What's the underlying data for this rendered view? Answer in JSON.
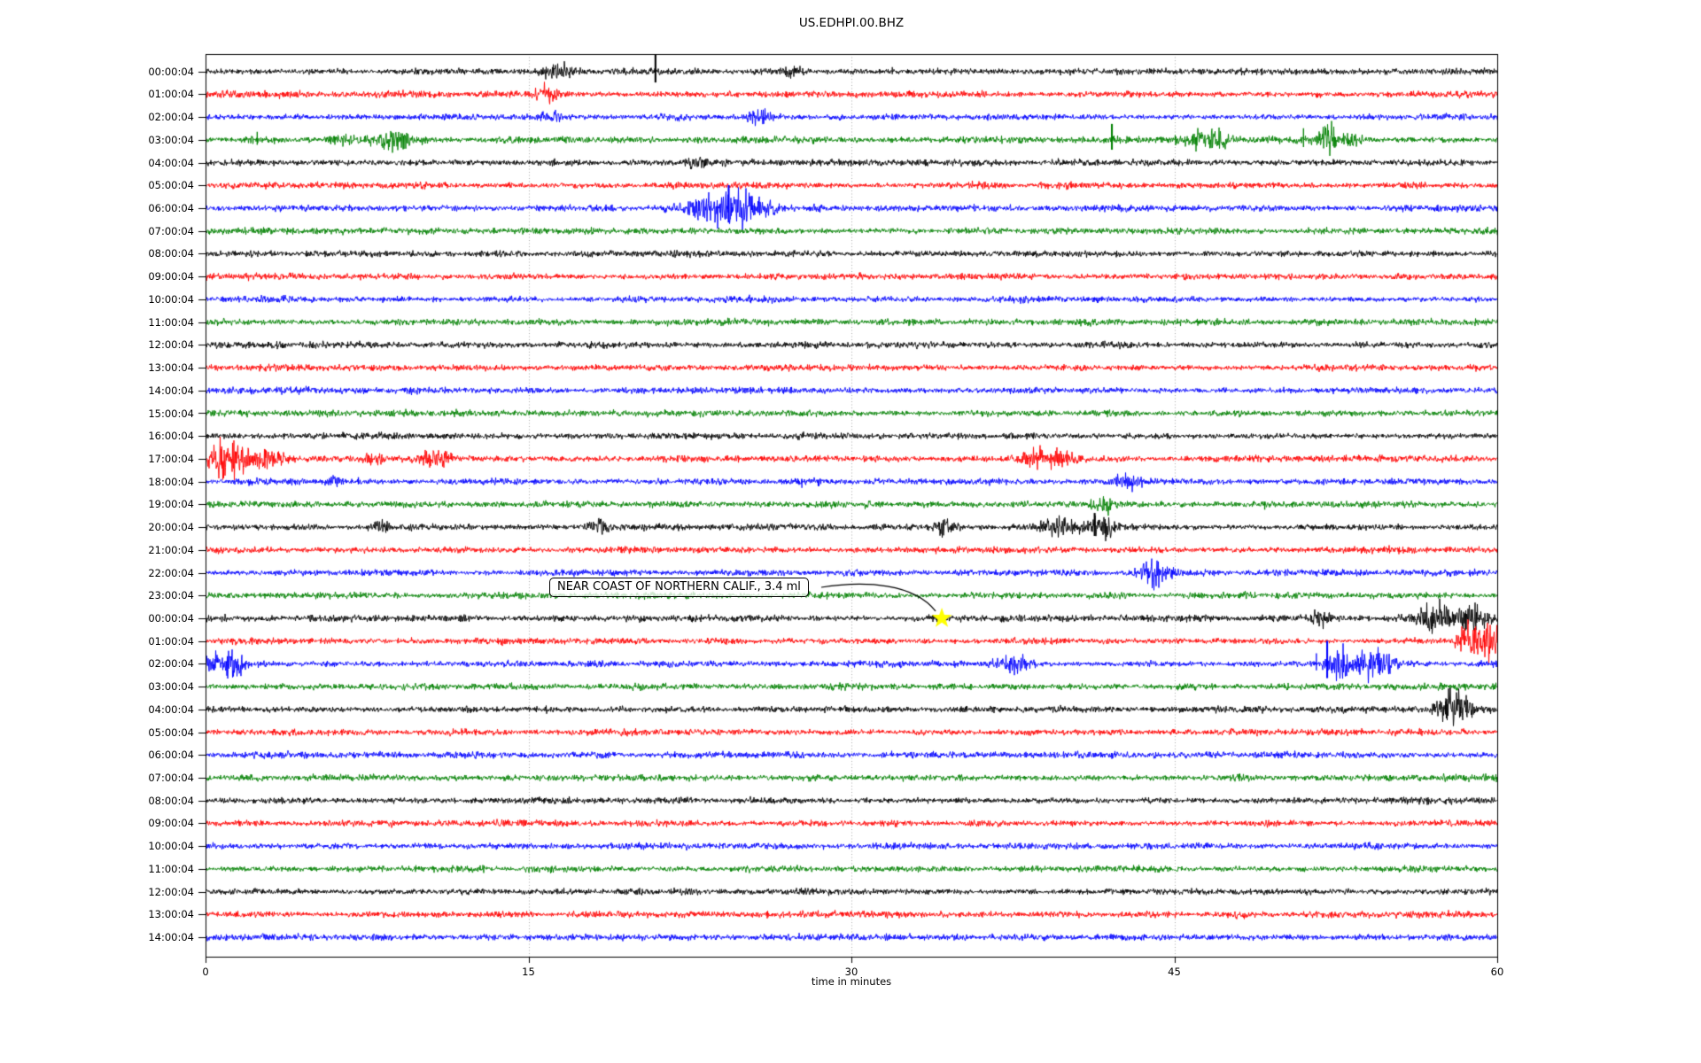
{
  "title": "US.EDHPI.00.BHZ",
  "xaxis": {
    "label": "time in minutes",
    "tick_labels": [
      "0",
      "15",
      "30",
      "45",
      "60"
    ],
    "tick_minutes": [
      0,
      15,
      30,
      45,
      60
    ],
    "grid_minutes": [
      15,
      30,
      45
    ],
    "range": [
      0,
      60
    ]
  },
  "annotation": {
    "text": "NEAR COAST OF NORTHERN CALIF., 3.4 ml",
    "target_row": 24,
    "target_row_label": "00:00:04",
    "target_minute": 34.2,
    "marker": "star",
    "marker_color": "#ffff00"
  },
  "palette": {
    "black": "#000000",
    "red": "#ff0000",
    "blue": "#0000ff",
    "green": "#008000",
    "grid": "#aaaaaa",
    "frame": "#000000",
    "background": "#ffffff"
  },
  "chart_data": {
    "type": "line",
    "subtype": "helicorder-seismogram",
    "title": "US.EDHPI.00.BHZ",
    "xlabel": "time in minutes",
    "minutes_per_row": 60,
    "row_interval": "1 hour",
    "color_cycle": [
      "black",
      "red",
      "blue",
      "green"
    ],
    "rows": [
      {
        "label": "00:00:04",
        "color": "black",
        "events": [
          {
            "kind": "burst",
            "t": 16.4,
            "amp": 2.2,
            "w": 0.5
          },
          {
            "kind": "spike",
            "t": 20.9,
            "amp": 20
          },
          {
            "kind": "burst",
            "t": 27.3,
            "amp": 1.6,
            "w": 0.3
          },
          {
            "kind": "spike",
            "t": 31.9,
            "amp": 5
          }
        ]
      },
      {
        "label": "01:00:04",
        "color": "red",
        "events": [
          {
            "kind": "burst",
            "t": 15.9,
            "amp": 2.6,
            "w": 0.4
          }
        ]
      },
      {
        "label": "02:00:04",
        "color": "blue",
        "events": [
          {
            "kind": "burst",
            "t": 16.0,
            "amp": 1.7,
            "w": 0.3
          },
          {
            "kind": "burst",
            "t": 25.7,
            "amp": 2.0,
            "w": 0.4
          }
        ]
      },
      {
        "label": "03:00:04",
        "color": "green",
        "events": [
          {
            "kind": "spike",
            "t": 2.4,
            "amp": 9
          },
          {
            "kind": "spike",
            "t": 3.2,
            "amp": -5
          },
          {
            "kind": "spike",
            "t": 5.8,
            "amp": 4
          },
          {
            "kind": "burst",
            "t": 6.4,
            "amp": 2.0,
            "w": 0.4
          },
          {
            "kind": "burst",
            "t": 8.8,
            "amp": 2.8,
            "w": 0.7
          },
          {
            "kind": "spike",
            "t": 15.3,
            "amp": -4
          },
          {
            "kind": "spike",
            "t": 35.2,
            "amp": 4
          },
          {
            "kind": "spike",
            "t": 42.1,
            "amp": 18
          },
          {
            "kind": "burst",
            "t": 46.6,
            "amp": 3.2,
            "w": 0.7
          },
          {
            "kind": "spike",
            "t": 51.0,
            "amp": 13
          },
          {
            "kind": "burst",
            "t": 52.1,
            "amp": 4.5,
            "w": 0.35
          },
          {
            "kind": "burst",
            "t": 53.3,
            "amp": 2.0,
            "w": 0.3
          }
        ]
      },
      {
        "label": "04:00:04",
        "color": "black",
        "events": [
          {
            "kind": "burst",
            "t": 22.8,
            "amp": 1.4,
            "w": 0.3
          },
          {
            "kind": "spike",
            "t": 28.2,
            "amp": 4
          }
        ]
      },
      {
        "label": "05:00:04",
        "color": "red",
        "events": []
      },
      {
        "label": "06:00:04",
        "color": "blue",
        "events": [
          {
            "kind": "burst",
            "t": 23.4,
            "amp": 4.0,
            "w": 0.9
          },
          {
            "kind": "spike",
            "t": 24.3,
            "amp": 26
          },
          {
            "kind": "burst",
            "t": 24.9,
            "amp": 5.5,
            "w": 0.5
          },
          {
            "kind": "burst",
            "t": 25.9,
            "amp": 2.0,
            "w": 0.5
          }
        ]
      },
      {
        "label": "07:00:04",
        "color": "green",
        "events": []
      },
      {
        "label": "08:00:04",
        "color": "black",
        "events": []
      },
      {
        "label": "09:00:04",
        "color": "red",
        "events": []
      },
      {
        "label": "10:00:04",
        "color": "blue",
        "events": []
      },
      {
        "label": "11:00:04",
        "color": "green",
        "events": []
      },
      {
        "label": "12:00:04",
        "color": "black",
        "events": []
      },
      {
        "label": "13:00:04",
        "color": "red",
        "events": []
      },
      {
        "label": "14:00:04",
        "color": "blue",
        "events": []
      },
      {
        "label": "15:00:04",
        "color": "green",
        "events": []
      },
      {
        "label": "16:00:04",
        "color": "black",
        "events": []
      },
      {
        "label": "17:00:04",
        "color": "red",
        "events": [
          {
            "kind": "spike",
            "t": 0.75,
            "amp": 14
          },
          {
            "kind": "burst",
            "t": 0.9,
            "amp": 6,
            "w": 0.45
          },
          {
            "kind": "burst",
            "t": 1.9,
            "amp": 3.5,
            "w": 0.5
          },
          {
            "kind": "burst",
            "t": 3.0,
            "amp": 2.5,
            "w": 0.4
          },
          {
            "kind": "burst",
            "t": 7.8,
            "amp": 1.6,
            "w": 0.3
          },
          {
            "kind": "burst",
            "t": 10.7,
            "amp": 2.4,
            "w": 0.5
          },
          {
            "kind": "burst",
            "t": 38.6,
            "amp": 2.6,
            "w": 0.5
          },
          {
            "kind": "burst",
            "t": 39.8,
            "amp": 2.0,
            "w": 0.4
          },
          {
            "kind": "spike",
            "t": 48.5,
            "amp": 4
          }
        ]
      },
      {
        "label": "18:00:04",
        "color": "blue",
        "events": [
          {
            "kind": "burst",
            "t": 5.9,
            "amp": 1.5,
            "w": 0.3
          },
          {
            "kind": "spike",
            "t": 7.1,
            "amp": 5
          },
          {
            "kind": "spike",
            "t": 27.7,
            "amp": -7
          },
          {
            "kind": "spike",
            "t": 34.5,
            "amp": 3
          },
          {
            "kind": "burst",
            "t": 42.9,
            "amp": 2.4,
            "w": 0.4
          }
        ]
      },
      {
        "label": "19:00:04",
        "color": "green",
        "events": [
          {
            "kind": "burst",
            "t": 41.8,
            "amp": 2.0,
            "w": 0.4
          },
          {
            "kind": "spike",
            "t": 49.2,
            "amp": -6
          }
        ]
      },
      {
        "label": "20:00:04",
        "color": "black",
        "events": [
          {
            "kind": "burst",
            "t": 8.1,
            "amp": 1.8,
            "w": 0.3
          },
          {
            "kind": "burst",
            "t": 18.3,
            "amp": 2.0,
            "w": 0.4
          },
          {
            "kind": "burst",
            "t": 34.4,
            "amp": 2.3,
            "w": 0.4
          },
          {
            "kind": "burst",
            "t": 39.6,
            "amp": 3.2,
            "w": 0.5
          },
          {
            "kind": "spike",
            "t": 41.3,
            "amp": 16
          },
          {
            "kind": "burst",
            "t": 41.6,
            "amp": 3.5,
            "w": 0.6
          },
          {
            "kind": "spike",
            "t": 55.4,
            "amp": 4
          }
        ]
      },
      {
        "label": "21:00:04",
        "color": "red",
        "events": []
      },
      {
        "label": "22:00:04",
        "color": "blue",
        "events": [
          {
            "kind": "burst",
            "t": 44.1,
            "amp": 3.5,
            "w": 0.5
          }
        ]
      },
      {
        "label": "23:00:04",
        "color": "green",
        "events": []
      },
      {
        "label": "00:00:04",
        "color": "black",
        "events": [
          {
            "kind": "burst",
            "t": 51.8,
            "amp": 2.2,
            "w": 0.3
          },
          {
            "kind": "spike",
            "t": 57.0,
            "amp": -9
          },
          {
            "kind": "burst",
            "t": 57.2,
            "amp": 5,
            "w": 0.6
          },
          {
            "kind": "spike",
            "t": 57.8,
            "amp": -7
          },
          {
            "kind": "burst",
            "t": 58.9,
            "amp": 4,
            "w": 0.4
          }
        ]
      },
      {
        "label": "01:00:04",
        "color": "red",
        "events": [
          {
            "kind": "burst",
            "t": 58.9,
            "amp": 5.5,
            "w": 0.5
          },
          {
            "kind": "spike",
            "t": 59.4,
            "amp": 12
          },
          {
            "kind": "burst",
            "t": 59.8,
            "amp": 4,
            "w": 0.3
          }
        ]
      },
      {
        "label": "02:00:04",
        "color": "blue",
        "events": [
          {
            "kind": "burst",
            "t": 0.6,
            "amp": 3.5,
            "w": 0.6
          },
          {
            "kind": "burst",
            "t": 1.4,
            "amp": 2.2,
            "w": 0.3
          },
          {
            "kind": "burst",
            "t": 37.5,
            "amp": 3.2,
            "w": 0.5
          },
          {
            "kind": "spike",
            "t": 51.6,
            "amp": 12
          },
          {
            "kind": "spike",
            "t": 52.1,
            "amp": 26
          },
          {
            "kind": "burst",
            "t": 52.7,
            "amp": 4.5,
            "w": 0.4
          },
          {
            "kind": "burst",
            "t": 54.3,
            "amp": 4.0,
            "w": 0.7
          }
        ]
      },
      {
        "label": "03:00:04",
        "color": "green",
        "events": []
      },
      {
        "label": "04:00:04",
        "color": "black",
        "events": [
          {
            "kind": "spike",
            "t": 57.6,
            "amp": 9
          },
          {
            "kind": "burst",
            "t": 58.0,
            "amp": 6,
            "w": 0.5
          },
          {
            "kind": "spike",
            "t": 58.3,
            "amp": -8
          }
        ]
      },
      {
        "label": "05:00:04",
        "color": "red",
        "events": []
      },
      {
        "label": "06:00:04",
        "color": "blue",
        "events": [
          {
            "kind": "spike",
            "t": 21.8,
            "amp": 4
          }
        ]
      },
      {
        "label": "07:00:04",
        "color": "green",
        "events": []
      },
      {
        "label": "08:00:04",
        "color": "black",
        "events": []
      },
      {
        "label": "09:00:04",
        "color": "red",
        "events": []
      },
      {
        "label": "10:00:04",
        "color": "blue",
        "events": []
      },
      {
        "label": "11:00:04",
        "color": "green",
        "events": []
      },
      {
        "label": "12:00:04",
        "color": "black",
        "events": []
      },
      {
        "label": "13:00:04",
        "color": "red",
        "events": []
      },
      {
        "label": "14:00:04",
        "color": "blue",
        "events": []
      }
    ]
  }
}
